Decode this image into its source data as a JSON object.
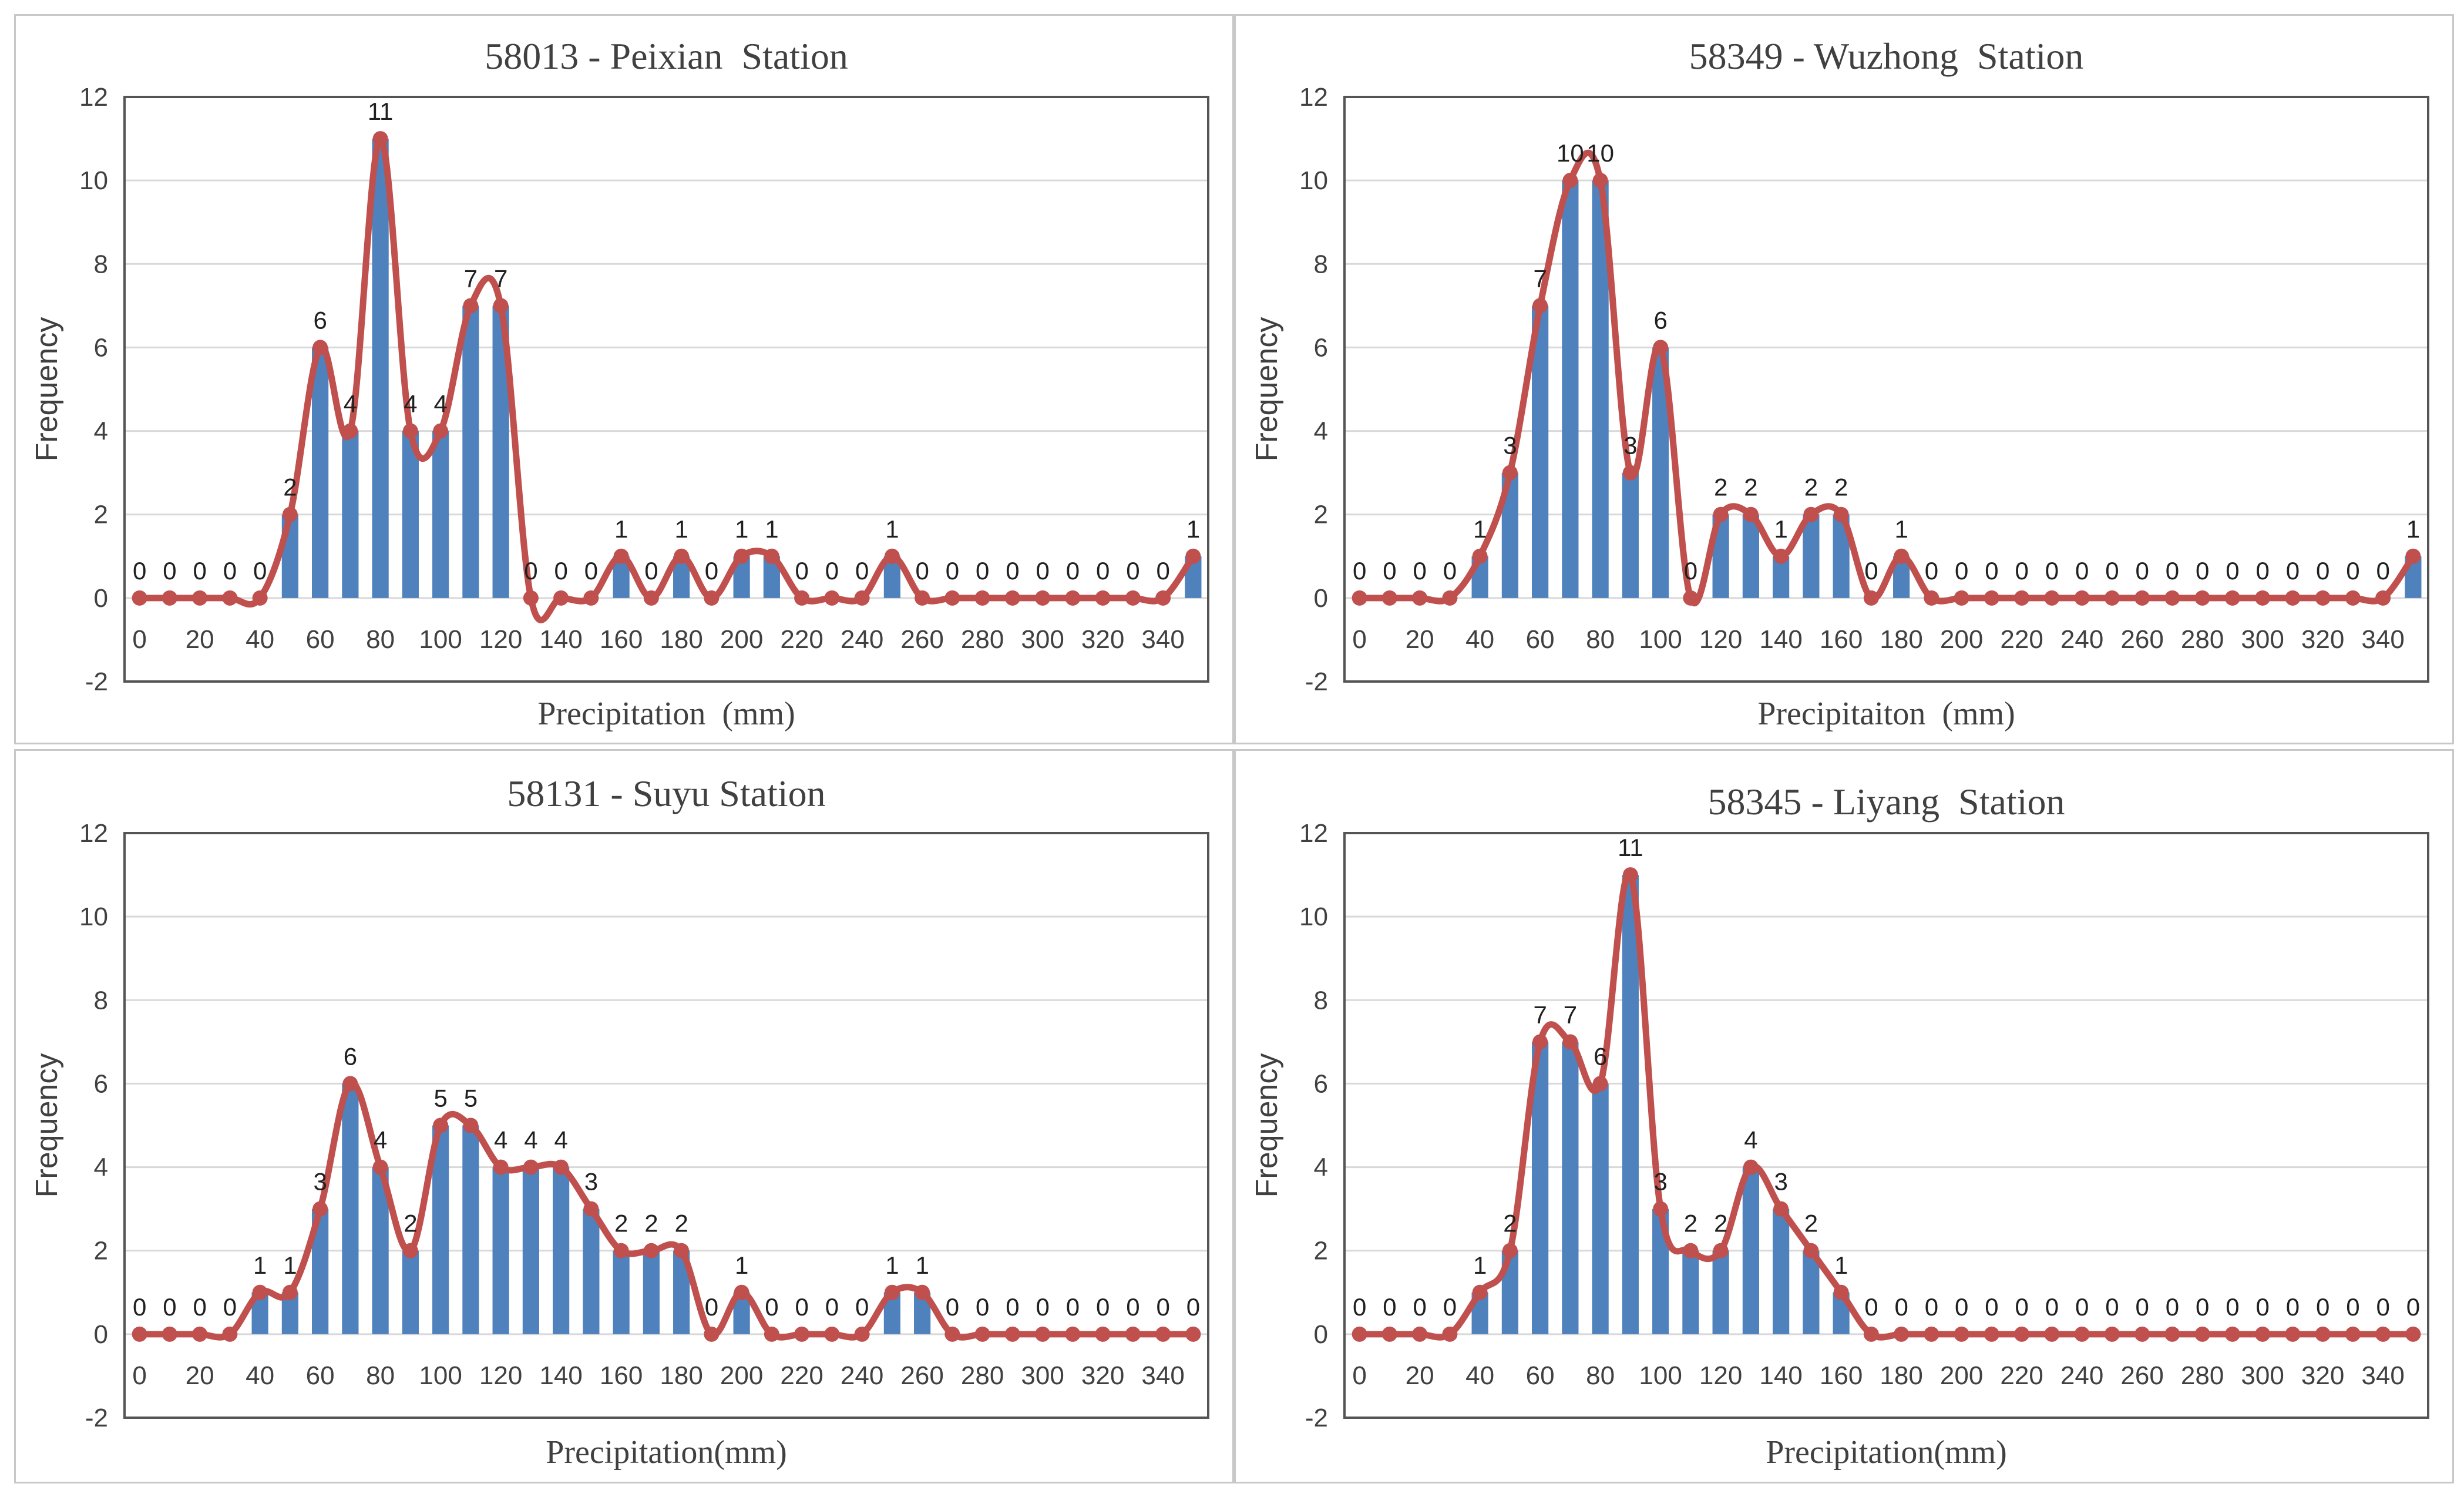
{
  "chart_data": [
    {
      "type": "bar",
      "title": "58013 - Peixian  Station",
      "xlabel": "Precipitation  (mm)",
      "ylabel": "Frequency",
      "ylim": [
        -2,
        12
      ],
      "yticks": [
        -2,
        0,
        2,
        4,
        6,
        8,
        10,
        12
      ],
      "xticks": [
        0,
        20,
        40,
        60,
        80,
        100,
        120,
        140,
        160,
        180,
        200,
        220,
        240,
        260,
        280,
        300,
        320,
        340
      ],
      "x": [
        0,
        10,
        20,
        30,
        40,
        50,
        60,
        70,
        80,
        90,
        100,
        110,
        120,
        130,
        140,
        150,
        160,
        170,
        180,
        190,
        200,
        210,
        220,
        230,
        240,
        250,
        260,
        270,
        280,
        290,
        300,
        310,
        320,
        330,
        340,
        350
      ],
      "values": [
        0,
        0,
        0,
        0,
        0,
        2,
        6,
        4,
        11,
        4,
        4,
        7,
        7,
        0,
        0,
        0,
        1,
        0,
        1,
        0,
        1,
        1,
        0,
        0,
        0,
        1,
        0,
        0,
        0,
        0,
        0,
        0,
        0,
        0,
        0,
        1
      ],
      "series": [
        {
          "name": "bar",
          "color": "#4f81bd"
        },
        {
          "name": "line",
          "color": "#c0504d"
        }
      ]
    },
    {
      "type": "bar",
      "title": "58349 - Wuzhong  Station",
      "xlabel": "Precipitaiton  (mm)",
      "ylabel": "Frequency",
      "ylim": [
        -2,
        12
      ],
      "yticks": [
        -2,
        0,
        2,
        4,
        6,
        8,
        10,
        12
      ],
      "xticks": [
        0,
        20,
        40,
        60,
        80,
        100,
        120,
        140,
        160,
        180,
        200,
        220,
        240,
        260,
        280,
        300,
        320,
        340
      ],
      "x": [
        0,
        10,
        20,
        30,
        40,
        50,
        60,
        70,
        80,
        90,
        100,
        110,
        120,
        130,
        140,
        150,
        160,
        170,
        180,
        190,
        200,
        210,
        220,
        230,
        240,
        250,
        260,
        270,
        280,
        290,
        300,
        310,
        320,
        330,
        340,
        350
      ],
      "values": [
        0,
        0,
        0,
        0,
        1,
        3,
        7,
        10,
        10,
        3,
        6,
        0,
        2,
        2,
        1,
        2,
        2,
        0,
        1,
        0,
        0,
        0,
        0,
        0,
        0,
        0,
        0,
        0,
        0,
        0,
        0,
        0,
        0,
        0,
        0,
        1
      ],
      "series": [
        {
          "name": "bar",
          "color": "#4f81bd"
        },
        {
          "name": "line",
          "color": "#c0504d"
        }
      ]
    },
    {
      "type": "bar",
      "title": "58131 - Suyu Station",
      "xlabel": "Precipitation(mm)",
      "ylabel": "Frequency",
      "ylim": [
        -2,
        12
      ],
      "yticks": [
        -2,
        0,
        2,
        4,
        6,
        8,
        10,
        12
      ],
      "xticks": [
        0,
        20,
        40,
        60,
        80,
        100,
        120,
        140,
        160,
        180,
        200,
        220,
        240,
        260,
        280,
        300,
        320,
        340
      ],
      "x": [
        0,
        10,
        20,
        30,
        40,
        50,
        60,
        70,
        80,
        90,
        100,
        110,
        120,
        130,
        140,
        150,
        160,
        170,
        180,
        190,
        200,
        210,
        220,
        230,
        240,
        250,
        260,
        270,
        280,
        290,
        300,
        310,
        320,
        330,
        340,
        350
      ],
      "values": [
        0,
        0,
        0,
        0,
        1,
        1,
        3,
        6,
        4,
        2,
        5,
        5,
        4,
        4,
        4,
        3,
        2,
        2,
        2,
        0,
        1,
        0,
        0,
        0,
        0,
        1,
        1,
        0,
        0,
        0,
        0,
        0,
        0,
        0,
        0,
        0
      ],
      "series": [
        {
          "name": "bar",
          "color": "#4f81bd"
        },
        {
          "name": "line",
          "color": "#c0504d"
        }
      ]
    },
    {
      "type": "bar",
      "title": "58345 - Liyang  Station",
      "xlabel": "Precipitation(mm)",
      "ylabel": "Frequency",
      "ylim": [
        -2,
        12
      ],
      "yticks": [
        -2,
        0,
        2,
        4,
        6,
        8,
        10,
        12
      ],
      "xticks": [
        0,
        20,
        40,
        60,
        80,
        100,
        120,
        140,
        160,
        180,
        200,
        220,
        240,
        260,
        280,
        300,
        320,
        340
      ],
      "x": [
        0,
        10,
        20,
        30,
        40,
        50,
        60,
        70,
        80,
        90,
        100,
        110,
        120,
        130,
        140,
        150,
        160,
        170,
        180,
        190,
        200,
        210,
        220,
        230,
        240,
        250,
        260,
        270,
        280,
        290,
        300,
        310,
        320,
        330,
        340,
        350
      ],
      "values": [
        0,
        0,
        0,
        0,
        1,
        2,
        7,
        7,
        6,
        11,
        3,
        2,
        2,
        4,
        3,
        2,
        1,
        0,
        0,
        0,
        0,
        0,
        0,
        0,
        0,
        0,
        0,
        0,
        0,
        0,
        0,
        0,
        0,
        0,
        0,
        0
      ],
      "series": [
        {
          "name": "bar",
          "color": "#4f81bd"
        },
        {
          "name": "line",
          "color": "#c0504d"
        }
      ]
    }
  ]
}
